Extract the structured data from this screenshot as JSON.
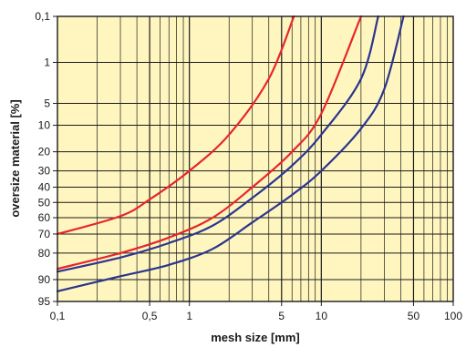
{
  "chart_data": {
    "type": "line",
    "title": "",
    "xlabel": "mesh size [mm]",
    "ylabel": "oversize material [%]",
    "x_scale": "log",
    "xlim": [
      0.1,
      100
    ],
    "y_scale": "probability",
    "ylim": [
      0.1,
      95
    ],
    "x_ticks": [
      {
        "value": 0.1,
        "label": "0,1"
      },
      {
        "value": 0.5,
        "label": "0,5"
      },
      {
        "value": 1,
        "label": "1"
      },
      {
        "value": 5,
        "label": "5"
      },
      {
        "value": 10,
        "label": "10"
      },
      {
        "value": 50,
        "label": "50"
      },
      {
        "value": 100,
        "label": "100"
      }
    ],
    "y_ticks": [
      {
        "value": 0.1,
        "label": "0,1"
      },
      {
        "value": 1,
        "label": "1"
      },
      {
        "value": 5,
        "label": "5"
      },
      {
        "value": 10,
        "label": "10"
      },
      {
        "value": 20,
        "label": "20"
      },
      {
        "value": 30,
        "label": "30"
      },
      {
        "value": 40,
        "label": "40"
      },
      {
        "value": 50,
        "label": "50"
      },
      {
        "value": 60,
        "label": "60"
      },
      {
        "value": 70,
        "label": "70"
      },
      {
        "value": 80,
        "label": "80"
      },
      {
        "value": 90,
        "label": "90"
      },
      {
        "value": 95,
        "label": "95"
      }
    ],
    "grid": true,
    "colors": {
      "background": "#fff6bf",
      "grid": "#1a1a1a",
      "red": "#e8252b",
      "blue": "#2a3590"
    },
    "series": [
      {
        "color": "red",
        "points": [
          [
            0.1,
            70
          ],
          [
            0.3,
            59
          ],
          [
            0.5,
            48
          ],
          [
            1,
            30
          ],
          [
            2,
            13
          ],
          [
            4,
            2
          ],
          [
            6.2,
            0.1
          ]
        ]
      },
      {
        "color": "red",
        "points": [
          [
            0.1,
            86.5
          ],
          [
            0.3,
            80
          ],
          [
            0.7,
            72
          ],
          [
            1.5,
            60
          ],
          [
            3,
            40
          ],
          [
            6,
            20
          ],
          [
            10,
            7
          ],
          [
            20,
            0.1
          ]
        ]
      },
      {
        "color": "blue",
        "points": [
          [
            0.1,
            87.5
          ],
          [
            0.3,
            82
          ],
          [
            0.7,
            75
          ],
          [
            1.5,
            65
          ],
          [
            3,
            47
          ],
          [
            6,
            27
          ],
          [
            10,
            13
          ],
          [
            20,
            2
          ],
          [
            27,
            0.1
          ]
        ]
      },
      {
        "color": "blue",
        "points": [
          [
            0.1,
            93
          ],
          [
            0.3,
            89
          ],
          [
            0.7,
            85
          ],
          [
            1.5,
            78
          ],
          [
            3,
            63
          ],
          [
            6,
            45
          ],
          [
            10,
            30
          ],
          [
            20,
            11
          ],
          [
            30,
            3
          ],
          [
            42,
            0.1
          ]
        ]
      }
    ]
  }
}
